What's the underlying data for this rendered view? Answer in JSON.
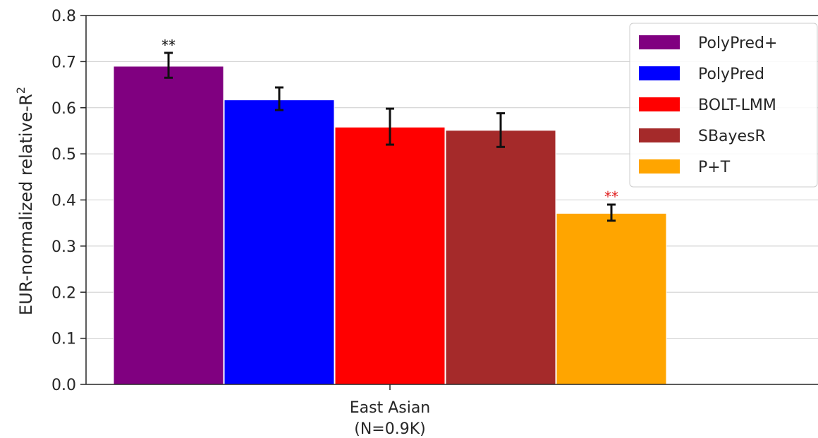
{
  "chart_data": {
    "type": "bar",
    "title": "",
    "ylabel": "EUR-normalized relative-R",
    "ylabel_superscript": "2",
    "xlabel": "",
    "ylim": [
      0,
      0.8
    ],
    "yticks": [
      "0.0",
      "0.1",
      "0.2",
      "0.3",
      "0.4",
      "0.5",
      "0.6",
      "0.7",
      "0.8"
    ],
    "grid": "horizontal",
    "legend_position": "top-right",
    "categories": [
      {
        "line1": "East Asian",
        "line2": "(N=0.9K)"
      }
    ],
    "series": [
      {
        "name": "PolyPred+",
        "color": "#800080",
        "values": [
          0.69
        ],
        "err_low": [
          0.665
        ],
        "err_high": [
          0.719
        ],
        "annotation": "**",
        "annotation_color": "#111111"
      },
      {
        "name": "PolyPred",
        "color": "#0000ff",
        "values": [
          0.617
        ],
        "err_low": [
          0.595
        ],
        "err_high": [
          0.644
        ],
        "annotation": "",
        "annotation_color": ""
      },
      {
        "name": "BOLT-LMM",
        "color": "#ff0000",
        "values": [
          0.558
        ],
        "err_low": [
          0.52
        ],
        "err_high": [
          0.598
        ],
        "annotation": "",
        "annotation_color": ""
      },
      {
        "name": "SBayesR",
        "color": "#a52a2a",
        "values": [
          0.551
        ],
        "err_low": [
          0.515
        ],
        "err_high": [
          0.588
        ],
        "annotation": "",
        "annotation_color": ""
      },
      {
        "name": "P+T",
        "color": "#ffa500",
        "values": [
          0.371
        ],
        "err_low": [
          0.355
        ],
        "err_high": [
          0.39
        ],
        "annotation": "**",
        "annotation_color": "#e02020"
      }
    ]
  }
}
